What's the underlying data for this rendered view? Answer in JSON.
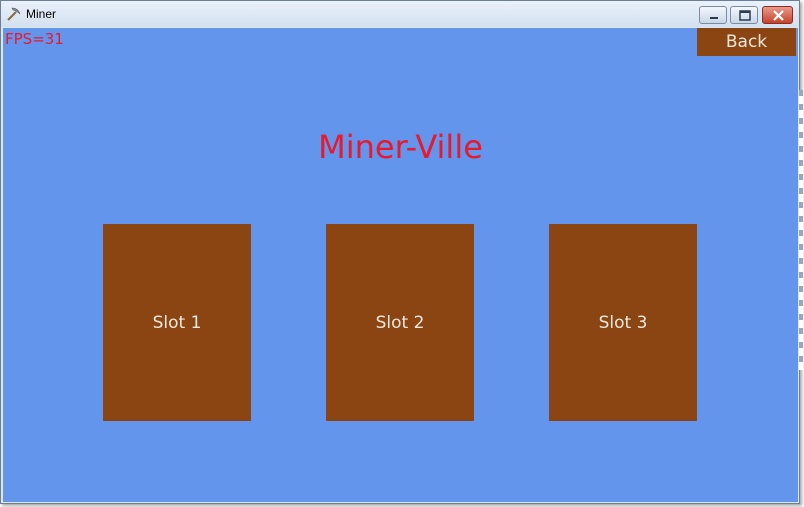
{
  "window": {
    "title": "Miner",
    "icons": {
      "app": "pickaxe-icon",
      "minimize": "minimize-icon",
      "maximize": "maximize-icon",
      "close": "close-icon"
    }
  },
  "game": {
    "fps_label": "FPS=31",
    "back_label": "Back",
    "heading": "Miner-Ville",
    "slots": [
      {
        "label": "Slot 1"
      },
      {
        "label": "Slot 2"
      },
      {
        "label": "Slot 3"
      }
    ]
  },
  "colors": {
    "background": "#6495ed",
    "button": "#8b4513",
    "accent_text": "#e8192c",
    "button_text": "#f2e8dc"
  }
}
